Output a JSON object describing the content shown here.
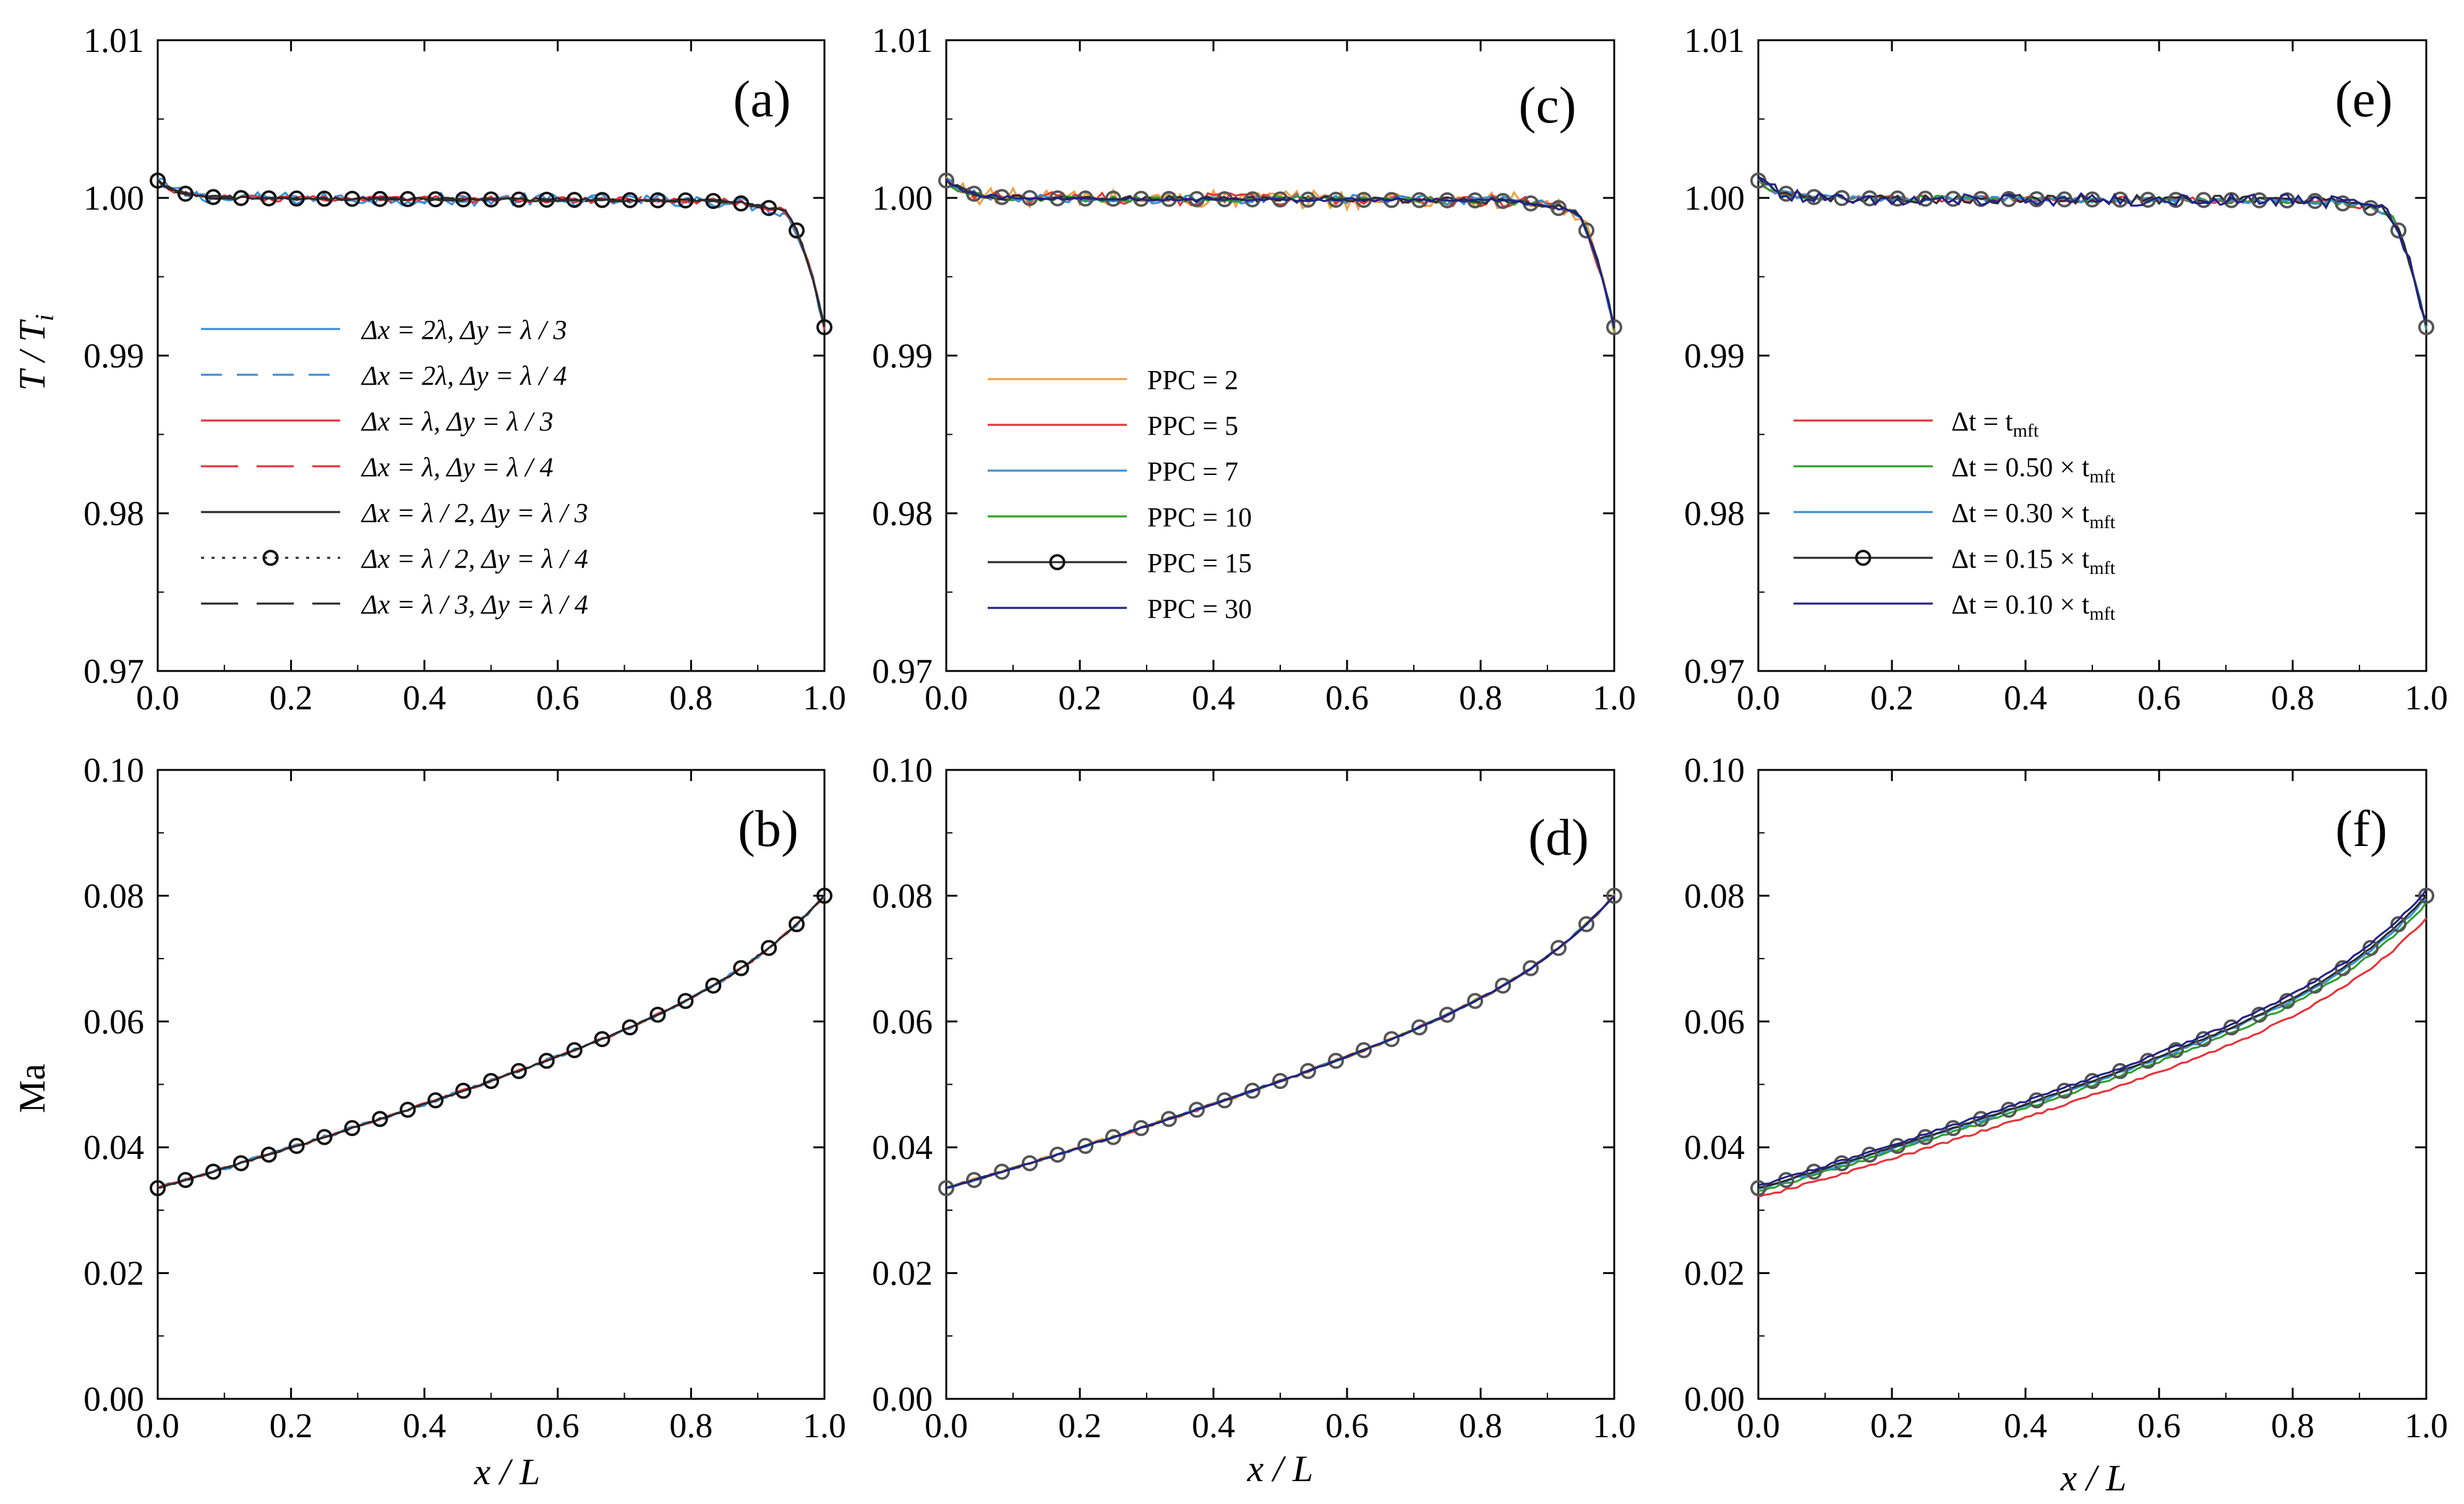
{
  "figure": {
    "y_label_top": "T / T",
    "y_label_top_sub": "i",
    "y_label_bottom": "Ma",
    "x_label": "x / L"
  },
  "colors": {
    "blue": "#3a8fd6",
    "red": "#e5333a",
    "black": "#2b2b2b",
    "orange": "#f0a040",
    "green": "#2ca02c",
    "navy": "#232385",
    "gray_marker": "#555555"
  },
  "chart_data": [
    {
      "id": "a",
      "type": "line",
      "panel_label": "(a)",
      "xlim": [
        0,
        1
      ],
      "ylim": [
        0.97,
        1.01
      ],
      "xticks": [
        "0.0",
        "0.2",
        "0.4",
        "0.6",
        "0.8",
        "1.0"
      ],
      "yticks": [
        "0.97",
        "0.98",
        "0.99",
        "1.00",
        "1.01"
      ],
      "xlabel": "",
      "ylabel": "T / Ti",
      "legend_position": "center-left",
      "series": [
        {
          "name": "Δx = 2λ, Δy = λ / 3",
          "color": "blue",
          "style": "solid",
          "markers": false,
          "profile": "temperature",
          "noise": 0.0004
        },
        {
          "name": "Δx = 2λ, Δy = λ / 4",
          "color": "blue",
          "style": "dashed",
          "markers": false,
          "profile": "temperature",
          "noise": 0.0002
        },
        {
          "name": "Δx = λ, Δy = λ / 3",
          "color": "red",
          "style": "solid",
          "markers": false,
          "profile": "temperature",
          "noise": 0.0002
        },
        {
          "name": "Δx = λ, Δy = λ / 4",
          "color": "red",
          "style": "longdash",
          "markers": false,
          "profile": "temperature",
          "noise": 0.0002
        },
        {
          "name": "Δx = λ / 2, Δy = λ / 3",
          "color": "black",
          "style": "solid",
          "markers": false,
          "profile": "temperature",
          "noise": 0.0001
        },
        {
          "name": "Δx = λ / 2, Δy = λ / 4",
          "color": "black",
          "style": "dotted",
          "markers": true,
          "profile": "temperature",
          "noise": 0.0001
        },
        {
          "name": "Δx = λ / 3, Δy = λ / 4",
          "color": "black",
          "style": "longdash",
          "markers": false,
          "profile": "temperature",
          "noise": 0.0001
        }
      ]
    },
    {
      "id": "b",
      "type": "line",
      "panel_label": "(b)",
      "xlim": [
        0,
        1
      ],
      "ylim": [
        0.0,
        0.1
      ],
      "xticks": [
        "0.0",
        "0.2",
        "0.4",
        "0.6",
        "0.8",
        "1.0"
      ],
      "yticks": [
        "0.00",
        "0.02",
        "0.04",
        "0.06",
        "0.08",
        "0.10"
      ],
      "xlabel": "x / L",
      "ylabel": "Ma",
      "legend_position": "none",
      "series": [
        {
          "name": "Δx = 2λ, Δy = λ / 3",
          "color": "blue",
          "style": "solid",
          "markers": false,
          "profile": "mach",
          "noise": 0.0003
        },
        {
          "name": "Δx = λ, Δy = λ / 3",
          "color": "red",
          "style": "solid",
          "markers": false,
          "profile": "mach",
          "noise": 0.0002
        },
        {
          "name": "Δx = λ / 2, Δy = λ / 3",
          "color": "black",
          "style": "solid",
          "markers": false,
          "profile": "mach",
          "noise": 0.0001
        },
        {
          "name": "Δx = λ / 2, Δy = λ / 4",
          "color": "black",
          "style": "dotted",
          "markers": true,
          "profile": "mach",
          "noise": 0.0001
        }
      ]
    },
    {
      "id": "c",
      "type": "line",
      "panel_label": "(c)",
      "xlim": [
        0,
        1
      ],
      "ylim": [
        0.97,
        1.01
      ],
      "xticks": [
        "0.0",
        "0.2",
        "0.4",
        "0.6",
        "0.8",
        "1.0"
      ],
      "yticks": [
        "0.97",
        "0.98",
        "0.99",
        "1.00",
        "1.01"
      ],
      "xlabel": "",
      "ylabel": "",
      "legend_position": "center-left",
      "series": [
        {
          "name": "PPC = 2",
          "color": "orange",
          "style": "solid",
          "markers": false,
          "profile": "temperature",
          "noise": 0.0006
        },
        {
          "name": "PPC = 5",
          "color": "red",
          "style": "solid",
          "markers": false,
          "profile": "temperature",
          "noise": 0.0004
        },
        {
          "name": "PPC = 7",
          "color": "blue",
          "style": "solid",
          "markers": false,
          "profile": "temperature",
          "noise": 0.0003
        },
        {
          "name": "PPC = 10",
          "color": "green",
          "style": "solid",
          "markers": false,
          "profile": "temperature",
          "noise": 0.0002
        },
        {
          "name": "PPC = 15",
          "color": "black",
          "style": "solid",
          "markers": true,
          "profile": "temperature",
          "noise": 0.0002
        },
        {
          "name": "PPC = 30",
          "color": "navy",
          "style": "solid",
          "markers": false,
          "profile": "temperature",
          "noise": 0.0001
        }
      ]
    },
    {
      "id": "d",
      "type": "line",
      "panel_label": "(d)",
      "xlim": [
        0,
        1
      ],
      "ylim": [
        0.0,
        0.1
      ],
      "xticks": [
        "0.0",
        "0.2",
        "0.4",
        "0.6",
        "0.8",
        "1.0"
      ],
      "yticks": [
        "0.00",
        "0.02",
        "0.04",
        "0.06",
        "0.08",
        "0.10"
      ],
      "xlabel": "x / L",
      "ylabel": "",
      "legend_position": "none",
      "series": [
        {
          "name": "PPC = 2",
          "color": "orange",
          "style": "solid",
          "markers": false,
          "profile": "mach",
          "noise": 0.0003
        },
        {
          "name": "PPC = 5",
          "color": "red",
          "style": "solid",
          "markers": false,
          "profile": "mach",
          "noise": 0.0002
        },
        {
          "name": "PPC = 7",
          "color": "blue",
          "style": "solid",
          "markers": false,
          "profile": "mach",
          "noise": 0.0002
        },
        {
          "name": "PPC = 10",
          "color": "green",
          "style": "solid",
          "markers": false,
          "profile": "mach",
          "noise": 0.0001
        },
        {
          "name": "PPC = 15",
          "color": "black",
          "style": "solid",
          "markers": true,
          "profile": "mach",
          "noise": 0.0001
        },
        {
          "name": "PPC = 30",
          "color": "navy",
          "style": "solid",
          "markers": false,
          "profile": "mach",
          "noise": 0.0001
        }
      ]
    },
    {
      "id": "e",
      "type": "line",
      "panel_label": "(e)",
      "xlim": [
        0,
        1
      ],
      "ylim": [
        0.97,
        1.01
      ],
      "xticks": [
        "0.0",
        "0.2",
        "0.4",
        "0.6",
        "0.8",
        "1.0"
      ],
      "yticks": [
        "0.97",
        "0.98",
        "0.99",
        "1.00",
        "1.01"
      ],
      "xlabel": "",
      "ylabel": "",
      "legend_position": "center-left",
      "series": [
        {
          "name": "Δt = t",
          "sub": "mft",
          "color": "red",
          "style": "solid",
          "markers": false,
          "profile": "temperature",
          "noise": 0.0002
        },
        {
          "name": "Δt = 0.50 × t",
          "sub": "mft",
          "color": "green",
          "style": "solid",
          "markers": false,
          "profile": "temperature",
          "noise": 0.0002
        },
        {
          "name": "Δt = 0.30 × t",
          "sub": "mft",
          "color": "blue",
          "style": "solid",
          "markers": false,
          "profile": "temperature",
          "noise": 0.0002
        },
        {
          "name": "Δt = 0.15 × t",
          "sub": "mft",
          "color": "black",
          "style": "solid",
          "markers": true,
          "profile": "temperature",
          "noise": 0.0003
        },
        {
          "name": "Δt = 0.10 × t",
          "sub": "mft",
          "color": "navy",
          "style": "solid",
          "markers": false,
          "profile": "temperature",
          "noise": 0.0004
        }
      ]
    },
    {
      "id": "f",
      "type": "line",
      "panel_label": "(f)",
      "xlim": [
        0,
        1
      ],
      "ylim": [
        0.0,
        0.1
      ],
      "xticks": [
        "0.0",
        "0.2",
        "0.4",
        "0.6",
        "0.8",
        "1.0"
      ],
      "yticks": [
        "0.00",
        "0.02",
        "0.04",
        "0.06",
        "0.08",
        "0.10"
      ],
      "xlabel": "x / L",
      "ylabel": "",
      "legend_position": "none",
      "series": [
        {
          "name": "Δt = t",
          "sub": "mft",
          "color": "red",
          "style": "solid",
          "markers": false,
          "profile": "mach",
          "scale": 0.955,
          "noise": 0.0002
        },
        {
          "name": "Δt = 0.50 × t",
          "sub": "mft",
          "color": "green",
          "style": "solid",
          "markers": false,
          "profile": "mach",
          "scale": 0.985,
          "noise": 0.0002
        },
        {
          "name": "Δt = 0.30 × t",
          "sub": "mft",
          "color": "blue",
          "style": "solid",
          "markers": false,
          "profile": "mach",
          "scale": 0.995,
          "noise": 0.0002
        },
        {
          "name": "Δt = 0.15 × t",
          "sub": "mft",
          "color": "black",
          "style": "solid",
          "markers": true,
          "profile": "mach",
          "scale": 1.0,
          "noise": 0.0001
        },
        {
          "name": "Δt = 0.10 × t",
          "sub": "mft",
          "color": "navy",
          "style": "solid",
          "markers": false,
          "profile": "mach",
          "scale": 1.01,
          "noise": 0.0002
        }
      ]
    }
  ]
}
